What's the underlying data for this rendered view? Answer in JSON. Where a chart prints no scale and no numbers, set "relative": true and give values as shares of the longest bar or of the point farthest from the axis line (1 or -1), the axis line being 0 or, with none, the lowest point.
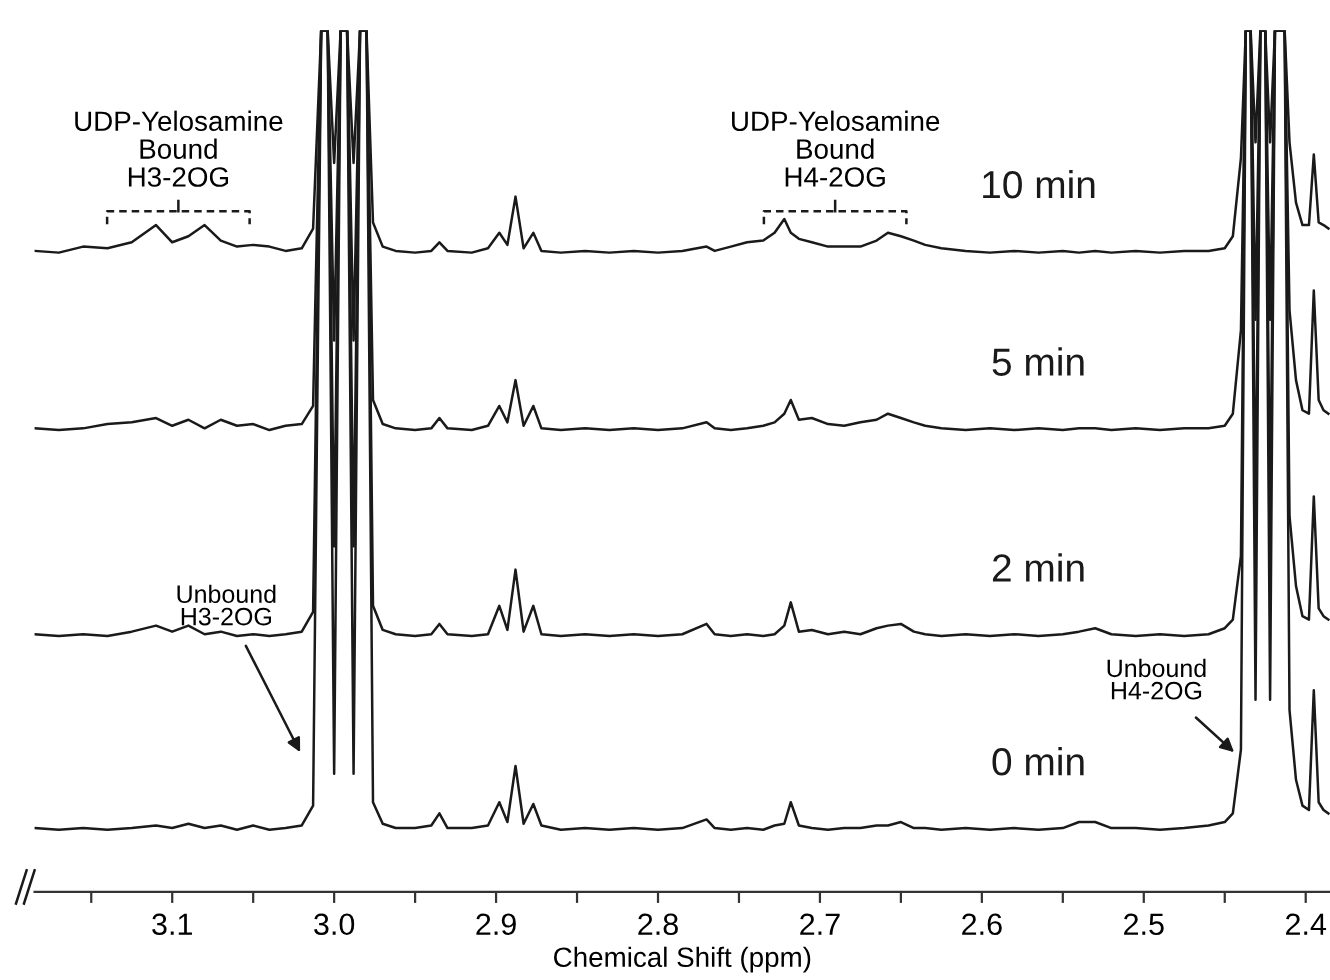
{
  "chart_data": {
    "type": "line",
    "relative": true,
    "xlabel": "Chemical Shift (ppm)",
    "xlim": [
      3.185,
      2.385
    ],
    "xticks": [
      {
        "value": 3.15,
        "label": null
      },
      3.1,
      {
        "value": 3.05,
        "label": null
      },
      {
        "value": 3.0,
        "label": "3.0"
      },
      {
        "value": 2.95,
        "label": null
      },
      2.9,
      {
        "value": 2.85,
        "label": null
      },
      2.8,
      {
        "value": 2.75,
        "label": null
      },
      2.7,
      {
        "value": 2.65,
        "label": null
      },
      2.6,
      {
        "value": 2.55,
        "label": null
      },
      2.5,
      {
        "value": 2.45,
        "label": null
      },
      2.4
    ],
    "x": [
      3.185,
      3.17,
      3.155,
      3.14,
      3.125,
      3.11,
      3.1,
      3.09,
      3.08,
      3.07,
      3.06,
      3.05,
      3.04,
      3.03,
      3.02,
      3.013,
      3.008,
      3.004,
      3.0,
      2.996,
      2.992,
      2.988,
      2.984,
      2.98,
      2.976,
      2.97,
      2.962,
      2.95,
      2.94,
      2.935,
      2.93,
      2.915,
      2.905,
      2.898,
      2.893,
      2.888,
      2.883,
      2.877,
      2.872,
      2.86,
      2.845,
      2.83,
      2.815,
      2.8,
      2.785,
      2.77,
      2.765,
      2.755,
      2.745,
      2.735,
      2.728,
      2.722,
      2.718,
      2.713,
      2.705,
      2.695,
      2.685,
      2.675,
      2.665,
      2.658,
      2.65,
      2.642,
      2.635,
      2.625,
      2.61,
      2.595,
      2.58,
      2.565,
      2.55,
      2.54,
      2.53,
      2.52,
      2.505,
      2.49,
      2.475,
      2.46,
      2.45,
      2.445,
      2.44,
      2.437,
      2.434,
      2.431,
      2.428,
      2.425,
      2.422,
      2.419,
      2.416,
      2.413,
      2.41,
      2.406,
      2.402,
      2.398,
      2.395,
      2.392,
      2.389,
      2.386
    ],
    "series": [
      {
        "name": "10 min",
        "color": "#1a1a1a",
        "values": [
          0.744,
          0.742,
          0.749,
          0.747,
          0.754,
          0.774,
          0.754,
          0.761,
          0.774,
          0.756,
          0.749,
          0.751,
          0.749,
          0.744,
          0.747,
          0.77,
          1,
          1,
          0.846,
          1,
          1,
          0.846,
          1,
          1,
          0.777,
          0.749,
          0.744,
          0.742,
          0.744,
          0.754,
          0.744,
          0.742,
          0.747,
          0.765,
          0.751,
          0.807,
          0.747,
          0.765,
          0.744,
          0.742,
          0.744,
          0.742,
          0.744,
          0.742,
          0.744,
          0.749,
          0.744,
          0.749,
          0.754,
          0.756,
          0.765,
          0.781,
          0.765,
          0.758,
          0.754,
          0.749,
          0.749,
          0.749,
          0.756,
          0.765,
          0.761,
          0.756,
          0.751,
          0.747,
          0.744,
          0.742,
          0.744,
          0.742,
          0.744,
          0.742,
          0.744,
          0.742,
          0.744,
          0.742,
          0.744,
          0.744,
          0.747,
          0.761,
          0.852,
          1,
          1,
          0.87,
          1,
          1,
          0.87,
          1,
          1,
          1,
          0.87,
          0.8,
          0.774,
          0.774,
          0.856,
          0.777,
          0.774,
          0.77
        ]
      },
      {
        "name": "5 min",
        "color": "#1a1a1a",
        "values": [
          0.538,
          0.536,
          0.538,
          0.543,
          0.545,
          0.55,
          0.541,
          0.548,
          0.538,
          0.548,
          0.541,
          0.543,
          0.536,
          0.541,
          0.543,
          0.564,
          1,
          1,
          0.64,
          1,
          1,
          0.64,
          1,
          1,
          0.571,
          0.543,
          0.538,
          0.536,
          0.538,
          0.55,
          0.538,
          0.536,
          0.541,
          0.564,
          0.545,
          0.594,
          0.541,
          0.564,
          0.538,
          0.536,
          0.538,
          0.536,
          0.538,
          0.536,
          0.538,
          0.545,
          0.538,
          0.536,
          0.538,
          0.541,
          0.545,
          0.555,
          0.571,
          0.548,
          0.55,
          0.543,
          0.541,
          0.545,
          0.548,
          0.555,
          0.55,
          0.545,
          0.541,
          0.538,
          0.536,
          0.538,
          0.536,
          0.538,
          0.536,
          0.538,
          0.538,
          0.536,
          0.538,
          0.536,
          0.538,
          0.538,
          0.541,
          0.555,
          0.652,
          1,
          1,
          0.664,
          1,
          1,
          0.664,
          1,
          1,
          1,
          0.675,
          0.594,
          0.559,
          0.555,
          0.698,
          0.571,
          0.559,
          0.555
        ]
      },
      {
        "name": "2 min",
        "color": "#1a1a1a",
        "values": [
          0.299,
          0.297,
          0.299,
          0.297,
          0.302,
          0.309,
          0.302,
          0.309,
          0.299,
          0.302,
          0.297,
          0.299,
          0.297,
          0.299,
          0.302,
          0.325,
          1,
          1,
          0.401,
          1,
          1,
          0.401,
          1,
          1,
          0.332,
          0.304,
          0.299,
          0.297,
          0.299,
          0.311,
          0.299,
          0.297,
          0.299,
          0.332,
          0.304,
          0.374,
          0.302,
          0.332,
          0.299,
          0.297,
          0.299,
          0.297,
          0.299,
          0.297,
          0.299,
          0.311,
          0.299,
          0.297,
          0.299,
          0.297,
          0.299,
          0.309,
          0.336,
          0.302,
          0.304,
          0.299,
          0.302,
          0.299,
          0.306,
          0.309,
          0.311,
          0.302,
          0.299,
          0.297,
          0.299,
          0.297,
          0.299,
          0.297,
          0.299,
          0.302,
          0.306,
          0.299,
          0.297,
          0.299,
          0.297,
          0.299,
          0.306,
          0.316,
          0.39,
          1,
          1,
          0.425,
          1,
          1,
          0.425,
          1,
          1,
          1,
          0.436,
          0.355,
          0.32,
          0.316,
          0.459,
          0.329,
          0.32,
          0.316
        ]
      },
      {
        "name": "0 min",
        "color": "#1a1a1a",
        "values": [
          0.074,
          0.072,
          0.074,
          0.072,
          0.074,
          0.077,
          0.074,
          0.079,
          0.074,
          0.077,
          0.072,
          0.077,
          0.072,
          0.074,
          0.077,
          0.1,
          1,
          1,
          0.137,
          1,
          1,
          0.137,
          1,
          1,
          0.104,
          0.079,
          0.074,
          0.074,
          0.077,
          0.091,
          0.074,
          0.074,
          0.077,
          0.104,
          0.081,
          0.146,
          0.079,
          0.102,
          0.077,
          0.072,
          0.074,
          0.072,
          0.074,
          0.072,
          0.074,
          0.084,
          0.074,
          0.072,
          0.074,
          0.072,
          0.077,
          0.079,
          0.104,
          0.077,
          0.074,
          0.072,
          0.074,
          0.074,
          0.077,
          0.077,
          0.081,
          0.074,
          0.074,
          0.072,
          0.074,
          0.072,
          0.074,
          0.072,
          0.074,
          0.081,
          0.081,
          0.074,
          0.074,
          0.072,
          0.074,
          0.077,
          0.081,
          0.091,
          0.165,
          1,
          1,
          0.223,
          1,
          1,
          0.223,
          1,
          1,
          1,
          0.211,
          0.13,
          0.1,
          0.095,
          0.234,
          0.104,
          0.095,
          0.091
        ]
      }
    ],
    "annotations": [
      "UDP-Yelosamine\nBound\nH3-2OG",
      "UDP-Yelosamine\nBound\nH4-2OG",
      "Unbound\nH3-2OG",
      "Unbound\nH4-2OG"
    ],
    "grid": false,
    "legend": false,
    "marker": "none",
    "line_style": "solid"
  }
}
